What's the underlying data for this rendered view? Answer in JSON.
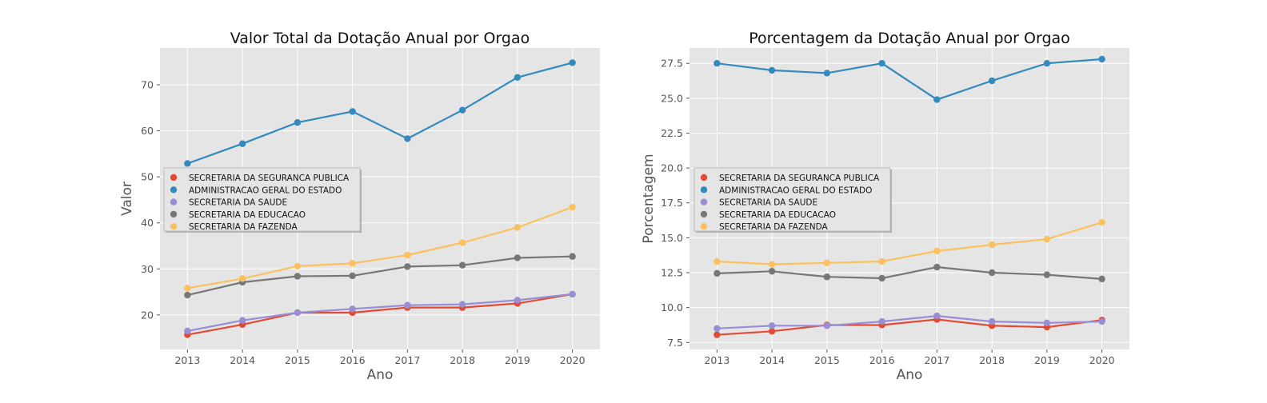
{
  "chart_data": [
    {
      "type": "line",
      "title": "Valor Total da Dotação Anual por Orgao",
      "xlabel": "Ano",
      "ylabel": "Valor",
      "x": [
        2013,
        2014,
        2015,
        2016,
        2017,
        2018,
        2019,
        2020
      ],
      "xlim": [
        2012.5,
        2020.5
      ],
      "ylim": [
        12.5,
        78
      ],
      "yticks": [
        20,
        30,
        40,
        50,
        60,
        70
      ],
      "ytick_labels": [
        "20",
        "30",
        "40",
        "50",
        "60",
        "70"
      ],
      "grid": true,
      "legend_position": "center-left",
      "series": [
        {
          "name": "SECRETARIA DA SEGURANCA PUBLICA",
          "color": "#e24a33",
          "values": [
            15.7,
            17.9,
            20.5,
            20.5,
            21.6,
            21.6,
            22.5,
            24.5
          ]
        },
        {
          "name": "ADMINISTRACAO GERAL DO ESTADO",
          "color": "#348abd",
          "values": [
            52.9,
            57.2,
            61.8,
            64.2,
            58.3,
            64.5,
            71.6,
            74.8
          ]
        },
        {
          "name": "SECRETARIA DA SAUDE",
          "color": "#988ed5",
          "values": [
            16.5,
            18.8,
            20.5,
            21.3,
            22.1,
            22.3,
            23.2,
            24.5
          ]
        },
        {
          "name": "SECRETARIA DA EDUCACAO",
          "color": "#777777",
          "values": [
            24.3,
            27.1,
            28.4,
            28.5,
            30.5,
            30.8,
            32.4,
            32.7
          ]
        },
        {
          "name": "SECRETARIA DA FAZENDA",
          "color": "#fbc15e",
          "values": [
            25.8,
            27.9,
            30.6,
            31.2,
            33.0,
            35.7,
            39.0,
            43.4
          ]
        }
      ]
    },
    {
      "type": "line",
      "title": "Porcentagem da Dotação Anual por Orgao",
      "xlabel": "Ano",
      "ylabel": "Porcentagem",
      "x": [
        2013,
        2014,
        2015,
        2016,
        2017,
        2018,
        2019,
        2020
      ],
      "xlim": [
        2012.5,
        2020.5
      ],
      "ylim": [
        7.0,
        28.6
      ],
      "yticks": [
        7.5,
        10.0,
        12.5,
        15.0,
        17.5,
        20.0,
        22.5,
        25.0,
        27.5
      ],
      "ytick_labels": [
        "7.5",
        "10.0",
        "12.5",
        "15.0",
        "17.5",
        "20.0",
        "22.5",
        "25.0",
        "27.5"
      ],
      "grid": true,
      "legend_position": "center-left",
      "series": [
        {
          "name": "SECRETARIA DA SEGURANCA PUBLICA",
          "color": "#e24a33",
          "values": [
            8.05,
            8.3,
            8.75,
            8.75,
            9.15,
            8.7,
            8.6,
            9.1
          ]
        },
        {
          "name": "ADMINISTRACAO GERAL DO ESTADO",
          "color": "#348abd",
          "values": [
            27.5,
            27.0,
            26.8,
            27.5,
            24.9,
            26.25,
            27.5,
            27.8
          ]
        },
        {
          "name": "SECRETARIA DA SAUDE",
          "color": "#988ed5",
          "values": [
            8.5,
            8.7,
            8.7,
            9.0,
            9.4,
            9.0,
            8.9,
            9.0
          ]
        },
        {
          "name": "SECRETARIA DA EDUCACAO",
          "color": "#777777",
          "values": [
            12.45,
            12.6,
            12.2,
            12.1,
            12.9,
            12.5,
            12.35,
            12.05
          ]
        },
        {
          "name": "SECRETARIA DA FAZENDA",
          "color": "#fbc15e",
          "values": [
            13.3,
            13.1,
            13.2,
            13.3,
            14.05,
            14.5,
            14.9,
            16.1
          ]
        }
      ]
    }
  ]
}
